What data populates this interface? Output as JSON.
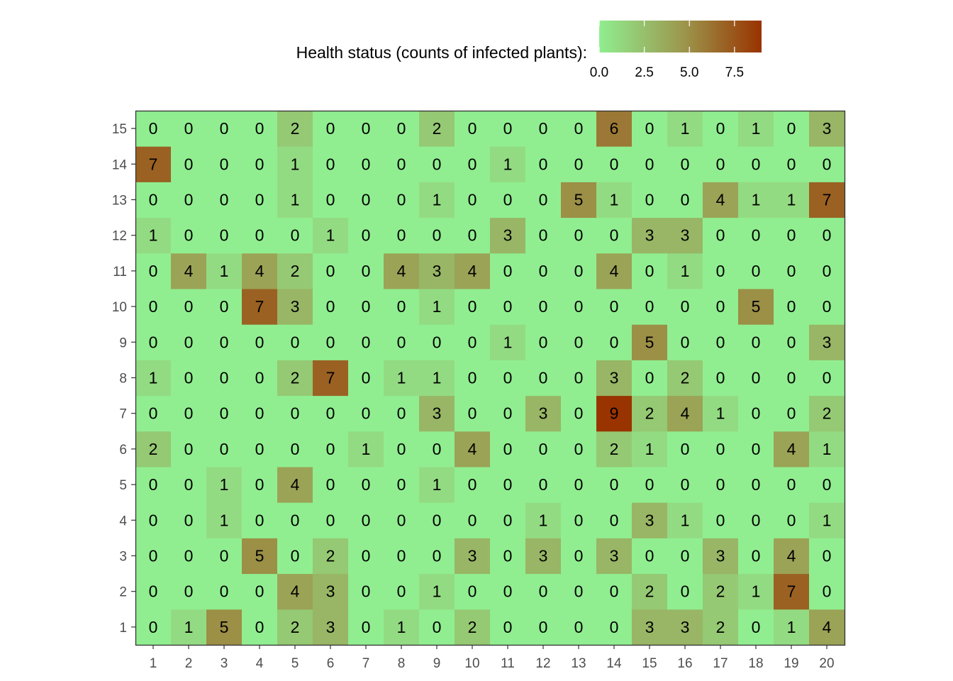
{
  "chart_data": {
    "type": "heatmap",
    "legend": {
      "title": "Health status (counts of infected plants):",
      "position": "top",
      "min": 0,
      "max": 9,
      "low_color": "#90ee90",
      "mid_color": "#9c9a4f",
      "high_color": "#993300",
      "ticks": [
        {
          "value": 0,
          "label": "0.0"
        },
        {
          "value": 2.5,
          "label": "2.5"
        },
        {
          "value": 5,
          "label": "5.0"
        },
        {
          "value": 7.5,
          "label": "7.5"
        }
      ]
    },
    "x_categories": [
      "1",
      "2",
      "3",
      "4",
      "5",
      "6",
      "7",
      "8",
      "9",
      "10",
      "11",
      "12",
      "13",
      "14",
      "15",
      "16",
      "17",
      "18",
      "19",
      "20"
    ],
    "y_categories": [
      "1",
      "2",
      "3",
      "4",
      "5",
      "6",
      "7",
      "8",
      "9",
      "10",
      "11",
      "12",
      "13",
      "14",
      "15"
    ],
    "xlabel": "",
    "ylabel": "",
    "grid": false,
    "rows": [
      [
        0,
        1,
        5,
        0,
        2,
        3,
        0,
        1,
        0,
        2,
        0,
        0,
        0,
        0,
        3,
        3,
        2,
        0,
        1,
        4
      ],
      [
        0,
        0,
        0,
        0,
        4,
        3,
        0,
        0,
        1,
        0,
        0,
        0,
        0,
        0,
        2,
        0,
        2,
        1,
        7,
        0
      ],
      [
        0,
        0,
        0,
        5,
        0,
        2,
        0,
        0,
        0,
        3,
        0,
        3,
        0,
        3,
        0,
        0,
        3,
        0,
        4,
        0
      ],
      [
        0,
        0,
        1,
        0,
        0,
        0,
        0,
        0,
        0,
        0,
        0,
        1,
        0,
        0,
        3,
        1,
        0,
        0,
        0,
        1
      ],
      [
        0,
        0,
        1,
        0,
        4,
        0,
        0,
        0,
        1,
        0,
        0,
        0,
        0,
        0,
        0,
        0,
        0,
        0,
        0,
        0
      ],
      [
        2,
        0,
        0,
        0,
        0,
        0,
        1,
        0,
        0,
        4,
        0,
        0,
        0,
        2,
        1,
        0,
        0,
        0,
        4,
        1
      ],
      [
        0,
        0,
        0,
        0,
        0,
        0,
        0,
        0,
        3,
        0,
        0,
        3,
        0,
        9,
        2,
        4,
        1,
        0,
        0,
        2
      ],
      [
        1,
        0,
        0,
        0,
        2,
        7,
        0,
        1,
        1,
        0,
        0,
        0,
        0,
        3,
        0,
        2,
        0,
        0,
        0,
        0
      ],
      [
        0,
        0,
        0,
        0,
        0,
        0,
        0,
        0,
        0,
        0,
        1,
        0,
        0,
        0,
        5,
        0,
        0,
        0,
        0,
        3
      ],
      [
        0,
        0,
        0,
        7,
        3,
        0,
        0,
        0,
        1,
        0,
        0,
        0,
        0,
        0,
        0,
        0,
        0,
        5,
        0,
        0
      ],
      [
        0,
        4,
        1,
        4,
        2,
        0,
        0,
        4,
        3,
        4,
        0,
        0,
        0,
        4,
        0,
        1,
        0,
        0,
        0,
        0
      ],
      [
        1,
        0,
        0,
        0,
        0,
        1,
        0,
        0,
        0,
        0,
        3,
        0,
        0,
        0,
        3,
        3,
        0,
        0,
        0,
        0
      ],
      [
        0,
        0,
        0,
        0,
        1,
        0,
        0,
        0,
        1,
        0,
        0,
        0,
        5,
        1,
        0,
        0,
        4,
        1,
        1,
        7
      ],
      [
        7,
        0,
        0,
        0,
        1,
        0,
        0,
        0,
        0,
        0,
        1,
        0,
        0,
        0,
        0,
        0,
        0,
        0,
        0,
        0
      ],
      [
        0,
        0,
        0,
        0,
        2,
        0,
        0,
        0,
        2,
        0,
        0,
        0,
        0,
        6,
        0,
        1,
        0,
        1,
        0,
        3
      ]
    ]
  }
}
